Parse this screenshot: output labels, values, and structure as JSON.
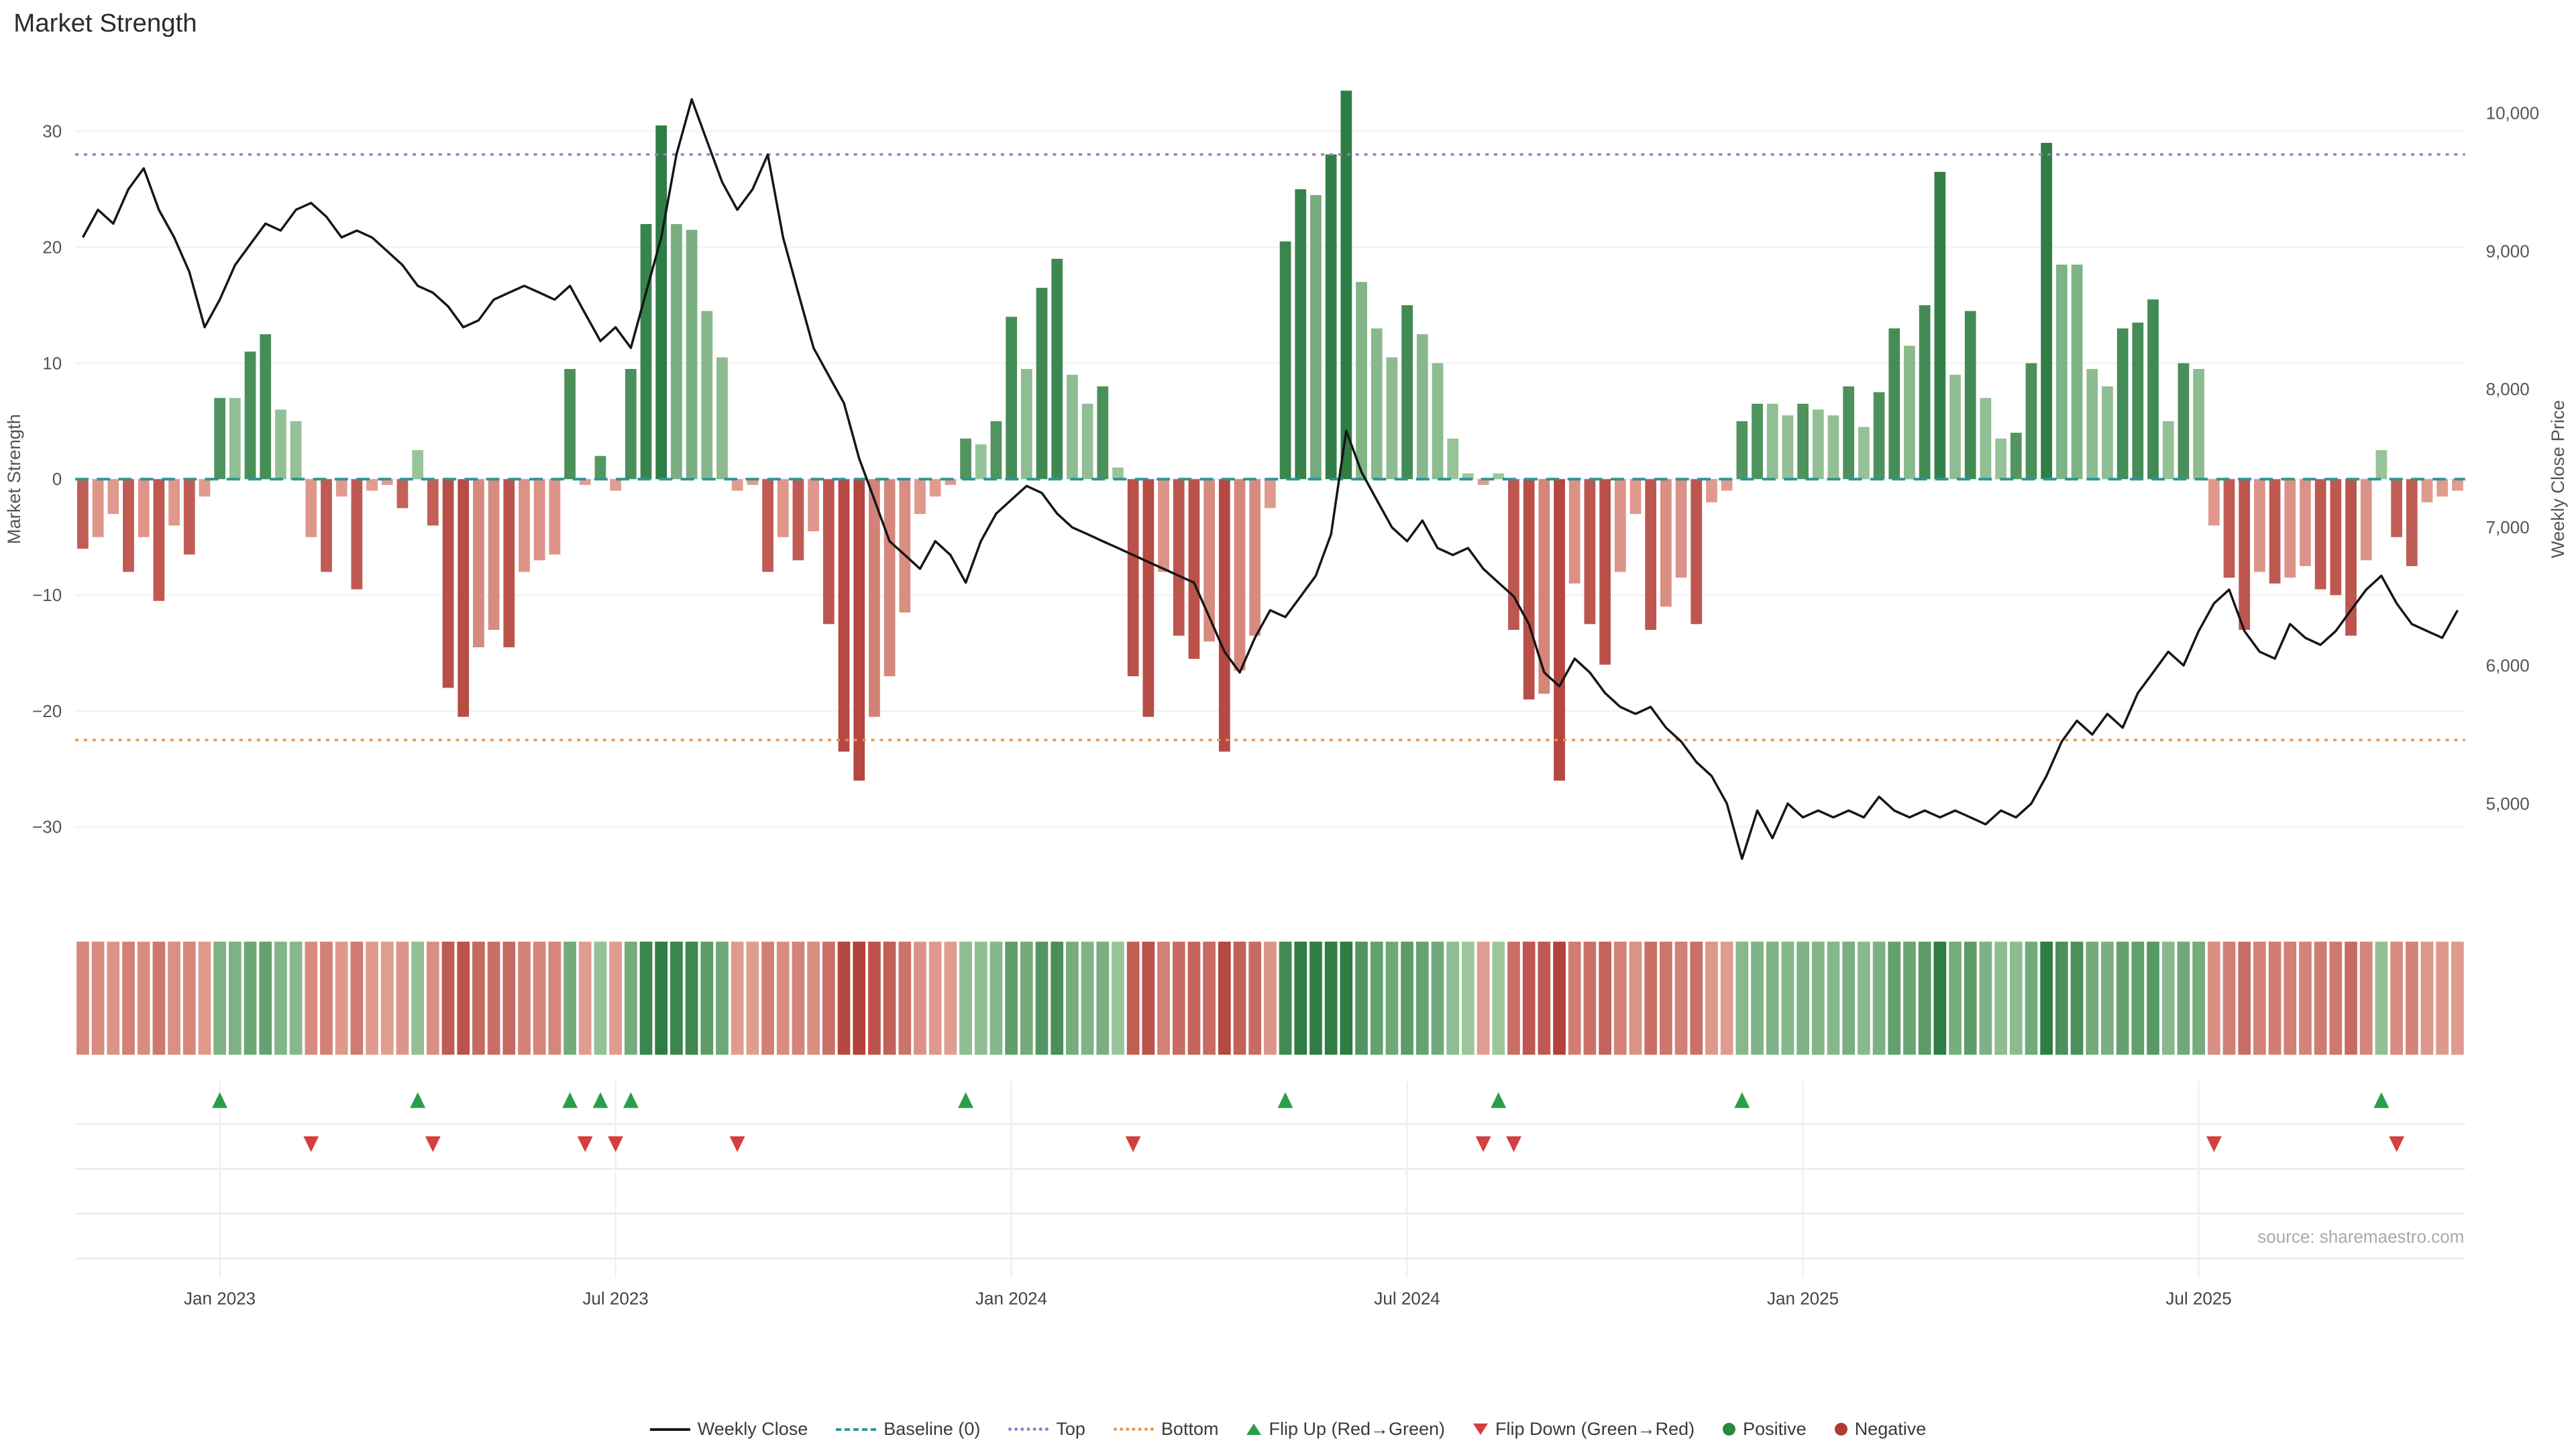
{
  "source_note": "source: sharemaestro.com",
  "chart_data": {
    "type": "combo",
    "title": "Market Strength",
    "left_axis_label": "Market Strength",
    "right_axis_label": "Weekly Close Price",
    "n_points": 157,
    "x_unit": "week",
    "left_axis_range": [
      -35,
      35
    ],
    "right_axis_range": [
      4400,
      10300
    ],
    "left_ticks": [
      {
        "label": "30",
        "value": 30
      },
      {
        "label": "20",
        "value": 20
      },
      {
        "label": "10",
        "value": 10
      },
      {
        "label": "0",
        "value": 0
      },
      {
        "label": "−10",
        "value": -10
      },
      {
        "label": "−20",
        "value": -20
      },
      {
        "label": "−30",
        "value": -30
      }
    ],
    "right_ticks": [
      {
        "label": "10,000",
        "value": 10000
      },
      {
        "label": "9,000",
        "value": 9000
      },
      {
        "label": "8,000",
        "value": 8000
      },
      {
        "label": "7,000",
        "value": 7000
      },
      {
        "label": "6,000",
        "value": 6000
      },
      {
        "label": "5,000",
        "value": 5000
      }
    ],
    "x_ticks": [
      {
        "label": "Jan 2023",
        "index": 9
      },
      {
        "label": "Jul 2023",
        "index": 35
      },
      {
        "label": "Jan 2024",
        "index": 61
      },
      {
        "label": "Jul 2024",
        "index": 87
      },
      {
        "label": "Jan 2025",
        "index": 113
      },
      {
        "label": "Jul 2025",
        "index": 139
      }
    ],
    "reference_lines": [
      {
        "name": "Baseline (0)",
        "value": 0,
        "style": "dashed",
        "color": "#2e9598"
      },
      {
        "name": "Top",
        "value": 28,
        "style": "dotted",
        "color": "#9b7bc8"
      },
      {
        "name": "Bottom",
        "value": -22.5,
        "style": "dotted",
        "color": "#e8954a"
      }
    ],
    "flip_up_indices": [
      9,
      22,
      32,
      34,
      36,
      58,
      79,
      93,
      109,
      151
    ],
    "flip_down_indices": [
      15,
      23,
      33,
      35,
      43,
      69,
      92,
      94,
      140,
      152
    ],
    "series": [
      {
        "name": "Market Strength",
        "type": "bar",
        "axis": "left",
        "values": [
          -6,
          -5,
          -3,
          -8,
          -5,
          -10.5,
          -4,
          -6.5,
          -1.5,
          7,
          7,
          11,
          12.5,
          6,
          5,
          -5,
          -8,
          -1.5,
          -9.5,
          -1,
          -0.5,
          -2.5,
          2.5,
          -4,
          -18,
          -20.5,
          -14.5,
          -13,
          -14.5,
          -8,
          -7,
          -6.5,
          9.5,
          -0.5,
          2,
          -1,
          9.5,
          22,
          30.5,
          22,
          21.5,
          14.5,
          10.5,
          -1,
          -0.5,
          -8,
          -5,
          -7,
          -4.5,
          -12.5,
          -23.5,
          -26,
          -20.5,
          -17,
          -11.5,
          -3,
          -1.5,
          -0.5,
          3.5,
          3,
          5,
          14,
          9.5,
          16.5,
          19,
          9,
          6.5,
          8,
          1,
          -17,
          -20.5,
          -8,
          -13.5,
          -15.5,
          -14,
          -23.5,
          -16.5,
          -13.5,
          -2.5,
          20.5,
          25,
          24.5,
          28,
          33.5,
          17,
          13,
          10.5,
          15,
          12.5,
          10,
          3.5,
          0.5,
          -0.5,
          0.5,
          -13,
          -19,
          -18.5,
          -26,
          -9,
          -12.5,
          -16,
          -8,
          -3,
          -13,
          -11,
          -8.5,
          -12.5,
          -2,
          -1,
          5,
          6.5,
          6.5,
          5.5,
          6.5,
          6,
          5.5,
          8,
          4.5,
          7.5,
          13,
          11.5,
          15,
          26.5,
          9,
          14.5,
          7,
          3.5,
          4,
          10,
          29,
          18.5,
          18.5,
          9.5,
          8,
          13,
          13.5,
          15.5,
          5,
          10,
          9.5,
          -4,
          -8.5,
          -13,
          -8,
          -9,
          -8.5,
          -7.5,
          -9.5,
          -10,
          -13.5,
          -7,
          2.5,
          -5,
          -7.5,
          -2,
          -1.5,
          -1
        ]
      },
      {
        "name": "Weekly Close",
        "type": "line",
        "axis": "right",
        "values": [
          9100,
          9300,
          9200,
          9450,
          9600,
          9300,
          9100,
          8850,
          8450,
          8650,
          8900,
          9050,
          9200,
          9150,
          9300,
          9350,
          9250,
          9100,
          9150,
          9100,
          9000,
          8900,
          8750,
          8700,
          8600,
          8450,
          8500,
          8650,
          8700,
          8750,
          8700,
          8650,
          8750,
          8550,
          8350,
          8450,
          8300,
          8700,
          9100,
          9700,
          10100,
          9800,
          9500,
          9300,
          9450,
          9700,
          9100,
          8700,
          8300,
          8100,
          7900,
          7500,
          7200,
          6900,
          6800,
          6700,
          6900,
          6800,
          6600,
          6900,
          7100,
          7200,
          7300,
          7250,
          7100,
          7000,
          6950,
          6900,
          6850,
          6800,
          6750,
          6700,
          6650,
          6600,
          6350,
          6100,
          5950,
          6200,
          6400,
          6350,
          6500,
          6650,
          6950,
          7700,
          7400,
          7200,
          7000,
          6900,
          7050,
          6850,
          6800,
          6850,
          6700,
          6600,
          6500,
          6300,
          5950,
          5850,
          6050,
          5950,
          5800,
          5700,
          5650,
          5700,
          5550,
          5450,
          5300,
          5200,
          5000,
          4600,
          4950,
          4750,
          5000,
          4900,
          4950,
          4900,
          4950,
          4900,
          5050,
          4950,
          4900,
          4950,
          4900,
          4950,
          4900,
          4850,
          4950,
          4900,
          5000,
          5200,
          5450,
          5600,
          5500,
          5650,
          5550,
          5800,
          5950,
          6100,
          6000,
          6250,
          6450,
          6550,
          6250,
          6100,
          6050,
          6300,
          6200,
          6150,
          6250,
          6400,
          6550,
          6650,
          6450,
          6300,
          6250,
          6200,
          6400
        ]
      }
    ],
    "colors": {
      "line": "#161616",
      "bar_green_dark": "#2e7d44",
      "bar_green_light": "#c2e0bb",
      "bar_red_dark": "#b2423c",
      "bar_red_light": "#f2bdae",
      "flip_up": "#2a9d4a",
      "flip_down": "#d43f3f",
      "positive": "#2a8a3e",
      "negative": "#b03a34",
      "baseline": "#2e9598",
      "top": "#9b7bc8",
      "bottom": "#e8954a"
    }
  },
  "legend": {
    "items": [
      {
        "label": "Weekly Close",
        "swatch": "line",
        "color": "#161616"
      },
      {
        "label": "Baseline (0)",
        "swatch": "dashed-line",
        "color": "#2e9598"
      },
      {
        "label": "Top",
        "swatch": "dotted-line",
        "color": "#9b7bc8"
      },
      {
        "label": "Bottom",
        "swatch": "dotted-line",
        "color": "#e8954a"
      },
      {
        "label": "Flip Up (Red→Green)",
        "swatch": "triangle-up",
        "color": "#2a9d4a"
      },
      {
        "label": "Flip Down (Green→Red)",
        "swatch": "triangle-down",
        "color": "#d43f3f"
      },
      {
        "label": "Positive",
        "swatch": "dot",
        "color": "#2a8a3e"
      },
      {
        "label": "Negative",
        "swatch": "dot",
        "color": "#b03a34"
      }
    ]
  }
}
